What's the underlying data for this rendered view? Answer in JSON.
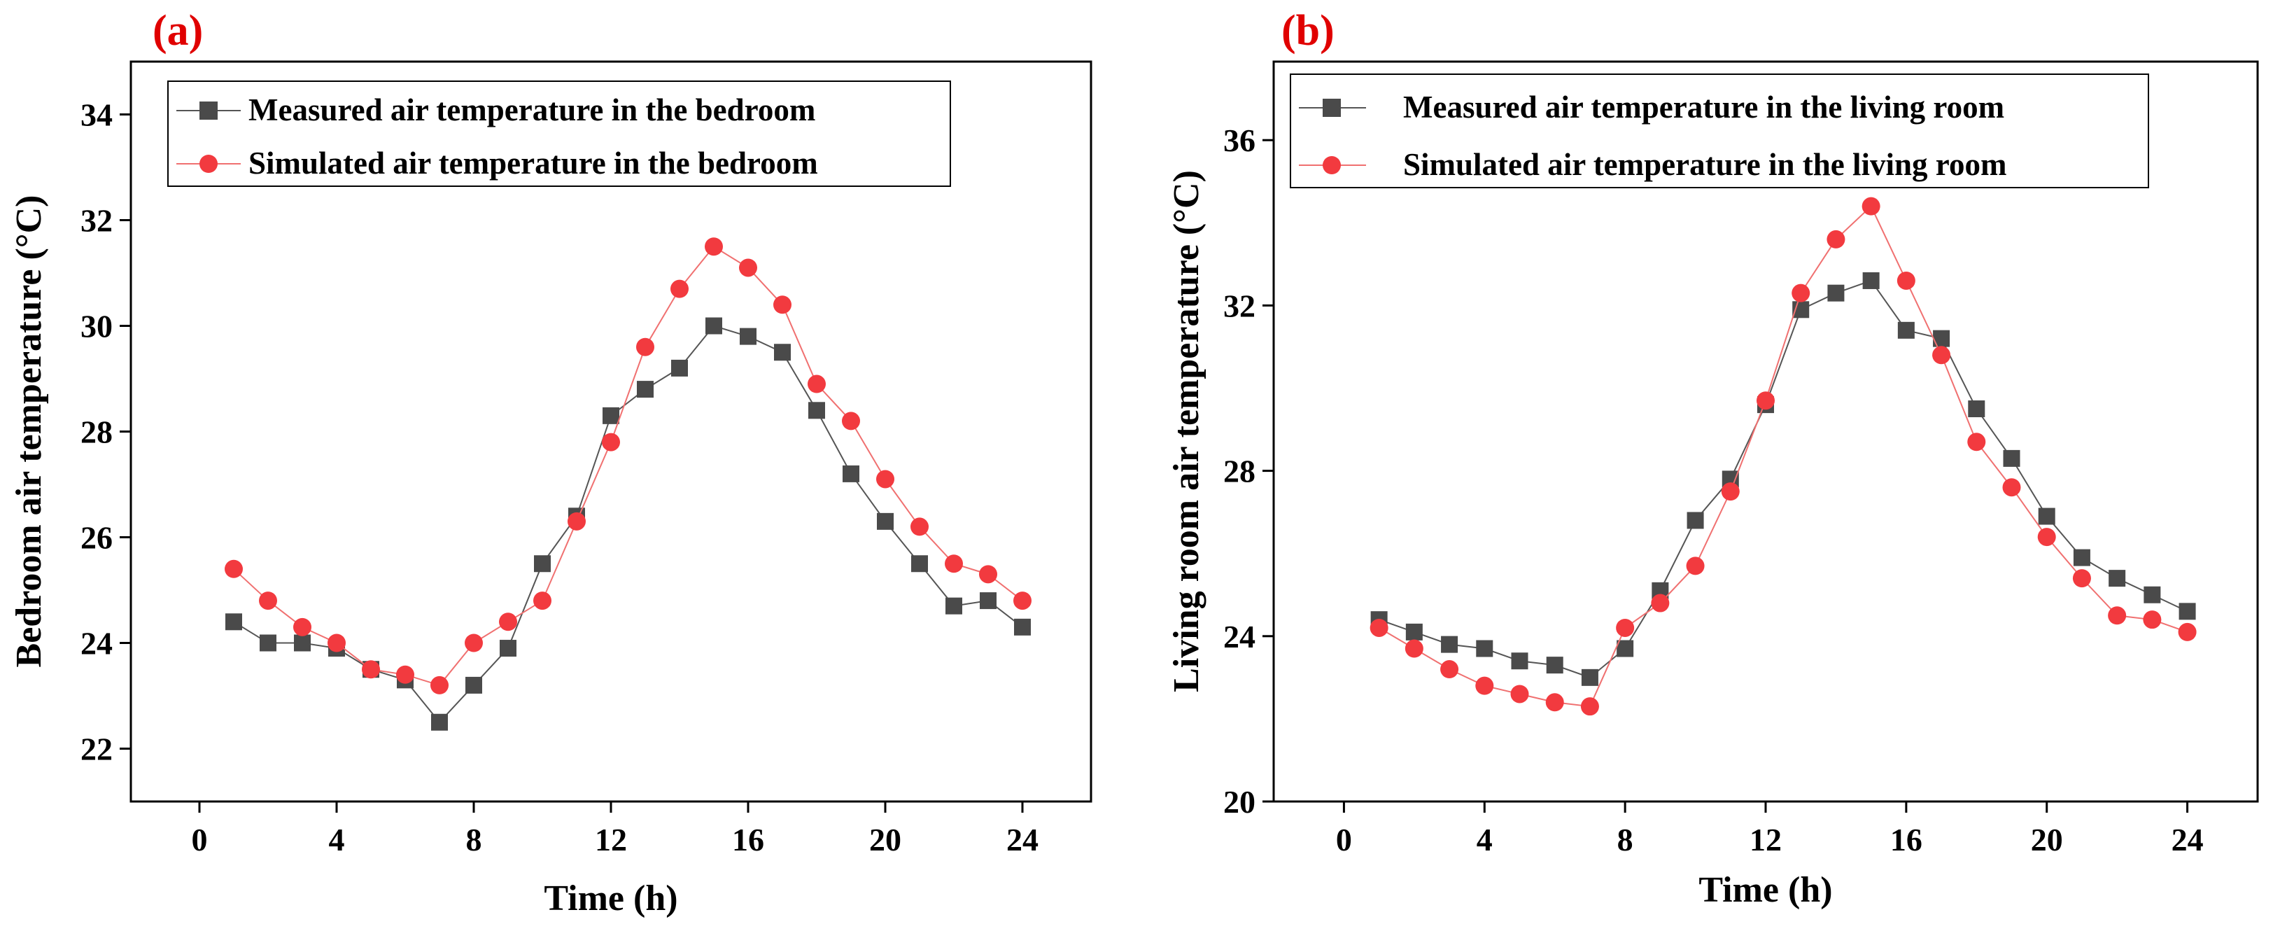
{
  "chart_data": [
    {
      "type": "line",
      "panel_label": "(a)",
      "xlabel": "Time (h)",
      "ylabel": "Bedroom air temperature (°C)",
      "xlim": [
        -2,
        26
      ],
      "ylim": [
        21,
        35
      ],
      "xticks": [
        0,
        4,
        8,
        12,
        16,
        20,
        24
      ],
      "yticks": [
        22,
        24,
        26,
        28,
        30,
        32,
        34
      ],
      "legend_position": "top-left",
      "x": [
        1,
        2,
        3,
        4,
        5,
        6,
        7,
        8,
        9,
        10,
        11,
        12,
        13,
        14,
        15,
        16,
        17,
        18,
        19,
        20,
        21,
        22,
        23,
        24
      ],
      "series": [
        {
          "name": "Measured air temperature in the bedroom",
          "marker": "square",
          "color": "#4a4a4a",
          "line_color": "#555555",
          "values": [
            24.4,
            24.0,
            24.0,
            23.9,
            23.5,
            23.3,
            22.5,
            23.2,
            23.9,
            25.5,
            26.4,
            28.3,
            28.8,
            29.2,
            30.0,
            29.8,
            29.5,
            28.4,
            27.2,
            26.3,
            25.5,
            24.7,
            24.8,
            24.3
          ]
        },
        {
          "name": "Simulated air temperature in the bedroom",
          "marker": "circle",
          "color": "#f23a3f",
          "line_color": "#f07070",
          "values": [
            25.4,
            24.8,
            24.3,
            24.0,
            23.5,
            23.4,
            23.2,
            24.0,
            24.4,
            24.8,
            26.3,
            27.8,
            29.6,
            30.7,
            31.5,
            31.1,
            30.4,
            28.9,
            28.2,
            27.1,
            26.2,
            25.5,
            25.3,
            24.8
          ]
        }
      ]
    },
    {
      "type": "line",
      "panel_label": "(b)",
      "xlabel": "Time (h)",
      "ylabel": "Living room air temperature (°C)",
      "xlim": [
        -2,
        26
      ],
      "ylim": [
        20,
        37.9
      ],
      "xticks": [
        0,
        4,
        8,
        12,
        16,
        20,
        24
      ],
      "yticks": [
        20,
        24,
        28,
        32,
        36
      ],
      "legend_position": "top-left",
      "x": [
        1,
        2,
        3,
        4,
        5,
        6,
        7,
        8,
        9,
        10,
        11,
        12,
        13,
        14,
        15,
        16,
        17,
        18,
        19,
        20,
        21,
        22,
        23,
        24
      ],
      "series": [
        {
          "name": "Measured air temperature in the living room",
          "marker": "square",
          "color": "#4a4a4a",
          "line_color": "#555555",
          "values": [
            24.4,
            24.1,
            23.8,
            23.7,
            23.4,
            23.3,
            23.0,
            23.7,
            25.1,
            26.8,
            27.8,
            29.6,
            31.9,
            32.3,
            32.6,
            31.4,
            31.2,
            29.5,
            28.3,
            26.9,
            25.9,
            25.4,
            25.0,
            24.6
          ]
        },
        {
          "name": "Simulated air temperature in the living room",
          "marker": "circle",
          "color": "#f23a3f",
          "line_color": "#f07070",
          "values": [
            24.2,
            23.7,
            23.2,
            22.8,
            22.6,
            22.4,
            22.3,
            24.2,
            24.8,
            25.7,
            27.5,
            29.7,
            32.3,
            33.6,
            34.4,
            32.6,
            30.8,
            28.7,
            27.6,
            26.4,
            25.4,
            24.5,
            24.4,
            24.1
          ]
        }
      ]
    }
  ]
}
